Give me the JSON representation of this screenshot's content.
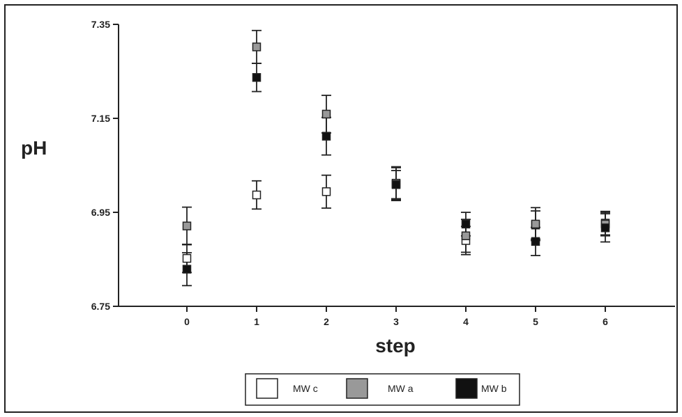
{
  "chart_data": {
    "type": "scatter",
    "xlabel": "step",
    "ylabel": "pH",
    "x_ticks": [
      "0",
      "1",
      "2",
      "3",
      "4",
      "5",
      "6"
    ],
    "y_ticks": [
      "6.75",
      "6.95",
      "7.15",
      "7.35"
    ],
    "xlim": [
      -1,
      7
    ],
    "ylim": [
      6.75,
      7.35
    ],
    "error_bars": true,
    "legend_position": "bottom",
    "series": [
      {
        "name": "MW c",
        "color": "#ffffff",
        "points": [
          {
            "x": 0,
            "y": 6.852,
            "err": 0.03
          },
          {
            "x": 1,
            "y": 6.987,
            "err": 0.03
          },
          {
            "x": 2,
            "y": 6.994,
            "err": 0.035
          },
          {
            "x": 3,
            "y": 7.01,
            "err": 0.035
          },
          {
            "x": 4,
            "y": 6.89,
            "err": 0.03
          },
          {
            "x": 5,
            "y": 6.923,
            "err": 0.03
          },
          {
            "x": 6,
            "y": 6.927,
            "err": 0.025
          }
        ]
      },
      {
        "name": "MW a",
        "color": "#999999",
        "points": [
          {
            "x": 0,
            "y": 6.921,
            "err": 0.04
          },
          {
            "x": 1,
            "y": 7.302,
            "err": 0.035
          },
          {
            "x": 2,
            "y": 7.159,
            "err": 0.04
          },
          {
            "x": 3,
            "y": 7.012,
            "err": 0.035
          },
          {
            "x": 4,
            "y": 6.9,
            "err": 0.035
          },
          {
            "x": 5,
            "y": 6.925,
            "err": 0.035
          },
          {
            "x": 6,
            "y": 6.925,
            "err": 0.025
          }
        ]
      },
      {
        "name": "MW b",
        "color": "#111111",
        "points": [
          {
            "x": 0,
            "y": 6.829,
            "err": 0.035
          },
          {
            "x": 1,
            "y": 7.237,
            "err": 0.03
          },
          {
            "x": 2,
            "y": 7.112,
            "err": 0.04
          },
          {
            "x": 3,
            "y": 7.009,
            "err": 0.03
          },
          {
            "x": 4,
            "y": 6.925,
            "err": 0.025
          },
          {
            "x": 5,
            "y": 6.888,
            "err": 0.03
          },
          {
            "x": 6,
            "y": 6.917,
            "err": 0.03
          }
        ]
      }
    ]
  }
}
